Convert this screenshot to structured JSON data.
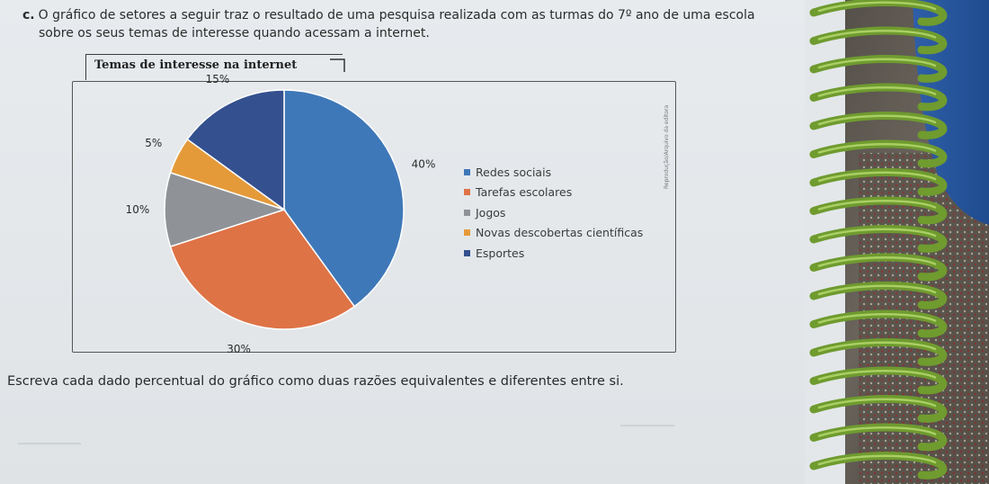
{
  "question": {
    "letter": "c.",
    "line1": "O gráfico de setores a seguir traz o resultado de uma pesquisa realizada com as turmas do 7º ano de uma escola",
    "line2": "sobre os seus temas de interesse quando acessam a internet."
  },
  "instruction": "Escreva cada dado percentual do gráfico como duas razões equivalentes e diferentes entre si.",
  "side_credit": "Reprodução/Arquivo da editora",
  "chart_data": {
    "type": "pie",
    "title": "Temas de interesse na internet",
    "start_angle_deg": 0,
    "direction": "clockwise",
    "legend_position": "right",
    "slices": [
      {
        "name": "Redes sociais",
        "value": 40,
        "label": "40%",
        "color": "#3f78b8"
      },
      {
        "name": "Tarefas escolares",
        "value": 30,
        "label": "30%",
        "color": "#de7346"
      },
      {
        "name": "Jogos",
        "value": 10,
        "label": "10%",
        "color": "#8f9397"
      },
      {
        "name": "Novas descobertas científicas",
        "value": 5,
        "label": "5%",
        "color": "#e59a3a"
      },
      {
        "name": "Esportes",
        "value": 15,
        "label": "15%",
        "color": "#34508f"
      }
    ]
  }
}
